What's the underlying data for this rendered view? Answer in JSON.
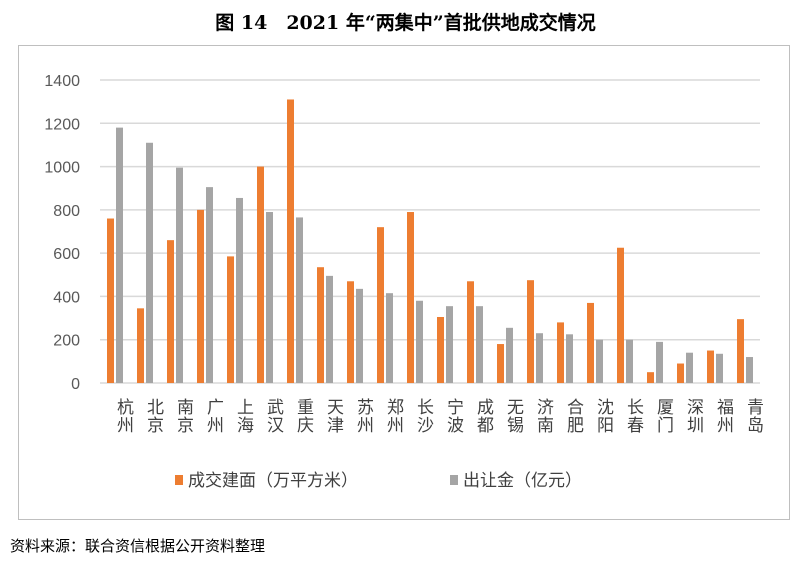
{
  "chart_data": {
    "type": "bar",
    "title": "图 14　2021 年“两集中”首批供地成交情况",
    "categories": [
      "杭州",
      "北京",
      "南京",
      "广州",
      "上海",
      "武汉",
      "重庆",
      "天津",
      "苏州",
      "郑州",
      "长沙",
      "宁波",
      "成都",
      "无锡",
      "济南",
      "合肥",
      "沈阳",
      "长春",
      "厦门",
      "深圳",
      "福州",
      "青岛"
    ],
    "series": [
      {
        "name": "成交建面（万平方米）",
        "color": "#ed7d31",
        "values": [
          760,
          345,
          660,
          800,
          585,
          1000,
          1310,
          535,
          470,
          720,
          790,
          305,
          470,
          180,
          475,
          280,
          370,
          625,
          50,
          90,
          150,
          295
        ]
      },
      {
        "name": "出让金（亿元）",
        "color": "#a5a5a5",
        "values": [
          1180,
          1110,
          995,
          905,
          855,
          790,
          765,
          495,
          435,
          415,
          380,
          355,
          355,
          255,
          230,
          225,
          200,
          200,
          190,
          140,
          135,
          120
        ]
      }
    ],
    "ylim": [
      0,
      1400
    ],
    "yticks": [
      0,
      200,
      400,
      600,
      800,
      1000,
      1200,
      1400
    ],
    "grid": true,
    "legend": "bottom"
  },
  "source": "资料来源：联合资信根据公开资料整理"
}
